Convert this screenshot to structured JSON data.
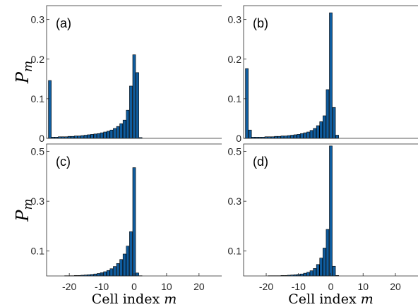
{
  "chart_data": [
    {
      "type": "bar",
      "panel_label": "(a)",
      "x": [
        -26,
        -25,
        -24,
        -23,
        -22,
        -21,
        -20,
        -19,
        -18,
        -17,
        -16,
        -15,
        -14,
        -13,
        -12,
        -11,
        -10,
        -9,
        -8,
        -7,
        -6,
        -5,
        -4,
        -3,
        -2,
        -1,
        0,
        1,
        2,
        3,
        4,
        5,
        6,
        7,
        8,
        9,
        10,
        11,
        12,
        13,
        14,
        15,
        16,
        17,
        18,
        19,
        20,
        21,
        22,
        23,
        24,
        25
      ],
      "values": [
        0.146,
        0.003,
        0.003,
        0.004,
        0.004,
        0.004,
        0.005,
        0.005,
        0.006,
        0.006,
        0.007,
        0.008,
        0.009,
        0.01,
        0.011,
        0.012,
        0.014,
        0.016,
        0.018,
        0.021,
        0.025,
        0.03,
        0.037,
        0.046,
        0.071,
        0.132,
        0.211,
        0.166,
        0.002,
        0,
        0,
        0,
        0,
        0,
        0,
        0,
        0,
        0,
        0,
        0,
        0,
        0,
        0,
        0,
        0,
        0,
        0,
        0,
        0,
        0,
        0,
        0
      ],
      "xlim": [
        -27,
        27
      ],
      "ylim": [
        0,
        0.335
      ],
      "yticks": [
        0,
        0.1,
        0.2,
        0.3
      ],
      "ytick_labels": [
        "0",
        "0.1",
        "0.2",
        "0.3"
      ],
      "xticks": [],
      "xtick_labels": [],
      "ylabel": "P",
      "ylabel_sub": "m",
      "xlabel": ""
    },
    {
      "type": "bar",
      "panel_label": "(b)",
      "x": [
        -26,
        -25,
        -24,
        -23,
        -22,
        -21,
        -20,
        -19,
        -18,
        -17,
        -16,
        -15,
        -14,
        -13,
        -12,
        -11,
        -10,
        -9,
        -8,
        -7,
        -6,
        -5,
        -4,
        -3,
        -2,
        -1,
        0,
        1,
        2,
        3,
        4,
        5,
        6,
        7,
        8,
        9,
        10,
        11,
        12,
        13,
        14,
        15,
        16,
        17,
        18,
        19,
        20,
        21,
        22,
        23,
        24,
        25
      ],
      "values": [
        0.176,
        0.021,
        0.003,
        0.003,
        0.003,
        0.003,
        0.004,
        0.004,
        0.004,
        0.005,
        0.005,
        0.006,
        0.006,
        0.007,
        0.008,
        0.009,
        0.01,
        0.012,
        0.014,
        0.016,
        0.02,
        0.025,
        0.032,
        0.042,
        0.057,
        0.123,
        0.317,
        0.078,
        0.008,
        0,
        0,
        0,
        0,
        0,
        0,
        0,
        0,
        0,
        0,
        0,
        0,
        0,
        0,
        0,
        0,
        0,
        0,
        0,
        0,
        0,
        0,
        0
      ],
      "xlim": [
        -27,
        27
      ],
      "ylim": [
        0,
        0.335
      ],
      "yticks": [
        0,
        0.1,
        0.2,
        0.3
      ],
      "ytick_labels": [
        "0",
        "0.1",
        "0.2",
        "0.3"
      ],
      "xticks": [],
      "xtick_labels": [],
      "ylabel": "",
      "xlabel": ""
    },
    {
      "type": "bar",
      "panel_label": "(c)",
      "x": [
        -26,
        -25,
        -24,
        -23,
        -22,
        -21,
        -20,
        -19,
        -18,
        -17,
        -16,
        -15,
        -14,
        -13,
        -12,
        -11,
        -10,
        -9,
        -8,
        -7,
        -6,
        -5,
        -4,
        -3,
        -2,
        -1,
        0,
        1,
        2,
        3,
        4,
        5,
        6,
        7,
        8,
        9,
        10,
        11,
        12,
        13,
        14,
        15,
        16,
        17,
        18,
        19,
        20,
        21,
        22,
        23,
        24,
        25
      ],
      "values": [
        0,
        0,
        0,
        0,
        0,
        0.001,
        0.001,
        0.001,
        0.002,
        0.002,
        0.003,
        0.004,
        0.005,
        0.006,
        0.008,
        0.01,
        0.013,
        0.017,
        0.022,
        0.029,
        0.038,
        0.05,
        0.066,
        0.088,
        0.12,
        0.178,
        0.435,
        0.012,
        0.001,
        0,
        0,
        0,
        0,
        0,
        0,
        0,
        0,
        0,
        0,
        0,
        0,
        0,
        0,
        0,
        0,
        0,
        0,
        0,
        0,
        0,
        0,
        0
      ],
      "xlim": [
        -27,
        27
      ],
      "ylim": [
        0,
        0.53
      ],
      "yticks": [
        0.1,
        0.3,
        0.5
      ],
      "ytick_labels": [
        "0.1",
        "0.3",
        "0.5"
      ],
      "xticks": [
        -20,
        -10,
        0,
        10,
        20
      ],
      "xtick_labels": [
        "-20",
        "-10",
        "0",
        "10",
        "20"
      ],
      "ylabel": "P",
      "ylabel_sub": "m",
      "xlabel": "Cell index",
      "xlabel_var": "m"
    },
    {
      "type": "bar",
      "panel_label": "(d)",
      "x": [
        -26,
        -25,
        -24,
        -23,
        -22,
        -21,
        -20,
        -19,
        -18,
        -17,
        -16,
        -15,
        -14,
        -13,
        -12,
        -11,
        -10,
        -9,
        -8,
        -7,
        -6,
        -5,
        -4,
        -3,
        -2,
        -1,
        0,
        1,
        2,
        3,
        4,
        5,
        6,
        7,
        8,
        9,
        10,
        11,
        12,
        13,
        14,
        15,
        16,
        17,
        18,
        19,
        20,
        21,
        22,
        23,
        24,
        25
      ],
      "values": [
        0,
        0,
        0,
        0,
        0,
        0,
        0,
        0.001,
        0.001,
        0.001,
        0.001,
        0.002,
        0.002,
        0.003,
        0.004,
        0.005,
        0.006,
        0.008,
        0.011,
        0.015,
        0.021,
        0.03,
        0.046,
        0.072,
        0.112,
        0.187,
        0.522,
        0.039,
        0.002,
        0,
        0,
        0,
        0,
        0,
        0,
        0,
        0,
        0,
        0,
        0,
        0,
        0,
        0,
        0,
        0,
        0,
        0,
        0,
        0,
        0,
        0,
        0
      ],
      "xlim": [
        -27,
        27
      ],
      "ylim": [
        0,
        0.53
      ],
      "yticks": [
        0.1,
        0.3,
        0.5
      ],
      "ytick_labels": [
        "0.1",
        "0.3",
        "0.5"
      ],
      "xticks": [
        -20,
        -10,
        0,
        10,
        20
      ],
      "xtick_labels": [
        "-20",
        "-10",
        "0",
        "10",
        "20"
      ],
      "ylabel": "",
      "xlabel": "Cell index",
      "xlabel_var": "m"
    }
  ]
}
